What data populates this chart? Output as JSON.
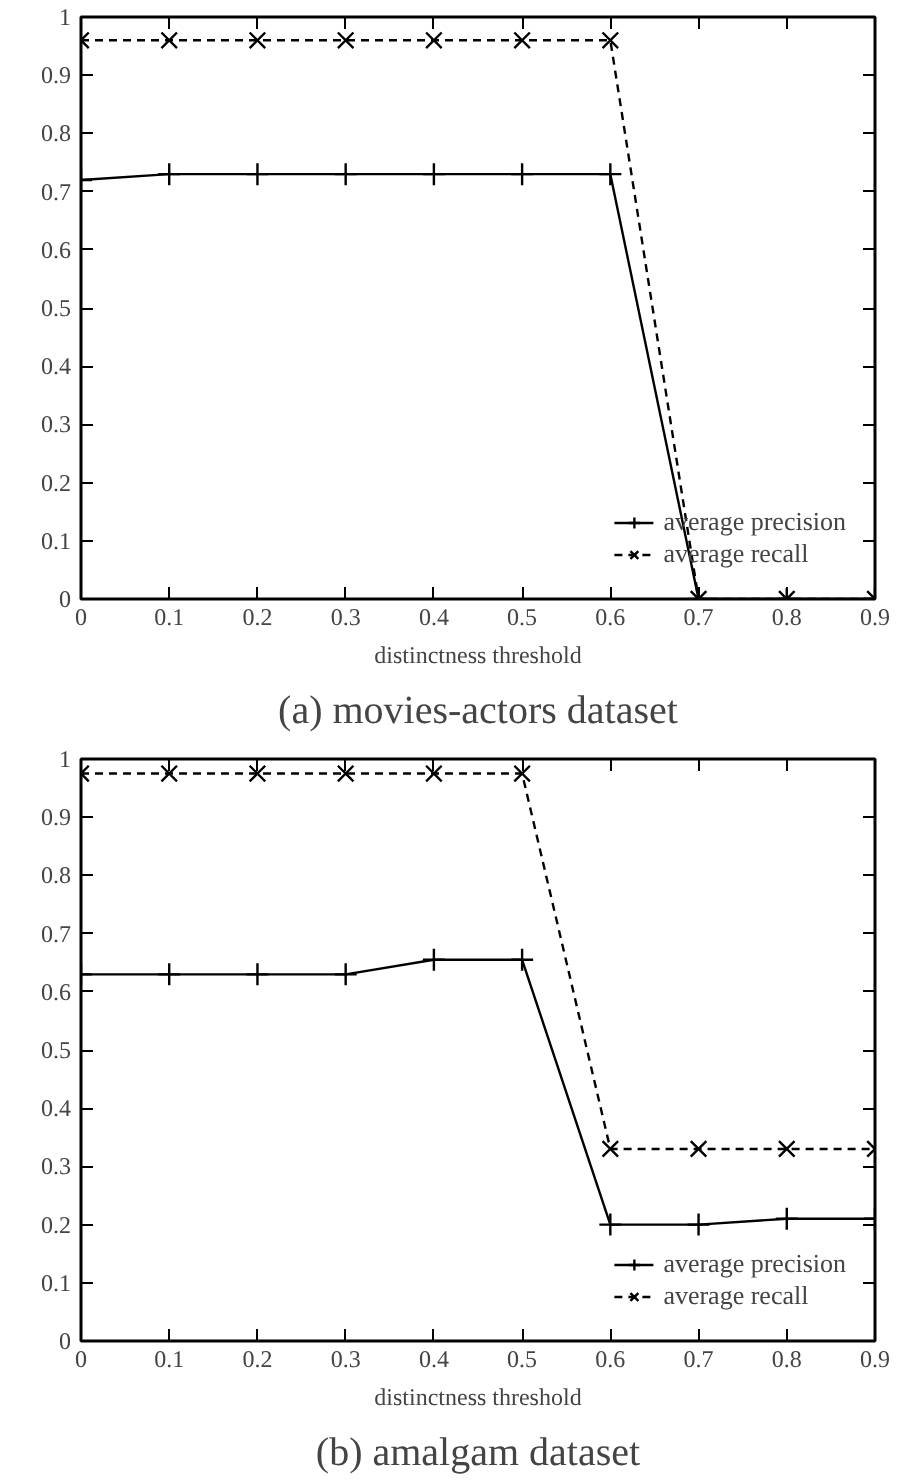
{
  "chart_data": [
    {
      "type": "line",
      "title": "(a) movies-actors dataset",
      "xlabel": "distinctness threshold",
      "x": [
        0,
        0.1,
        0.2,
        0.3,
        0.4,
        0.5,
        0.6,
        0.7,
        0.8,
        0.9
      ],
      "xlim": [
        0,
        0.9
      ],
      "ylim": [
        0,
        1
      ],
      "xticks": [
        0,
        0.1,
        0.2,
        0.3,
        0.4,
        0.5,
        0.6,
        0.7,
        0.8,
        0.9
      ],
      "yticks": [
        0,
        0.1,
        0.2,
        0.3,
        0.4,
        0.5,
        0.6,
        0.7,
        0.8,
        0.9,
        1
      ],
      "grid": false,
      "legend": "bottom right",
      "series": [
        {
          "name": "average precision",
          "color": "#000000",
          "line_style": "solid",
          "marker": "cross",
          "values": [
            0.72,
            0.73,
            0.73,
            0.73,
            0.73,
            0.73,
            0.73,
            0,
            0,
            0
          ]
        },
        {
          "name": "average recall",
          "color": "#000000",
          "line_style": "dashed",
          "marker": "x",
          "values": [
            0.96,
            0.96,
            0.96,
            0.96,
            0.96,
            0.96,
            0.96,
            0,
            0,
            0
          ]
        }
      ]
    },
    {
      "type": "line",
      "title": "(b) amalgam dataset",
      "xlabel": "distinctness threshold",
      "x": [
        0,
        0.1,
        0.2,
        0.3,
        0.4,
        0.5,
        0.6,
        0.7,
        0.8,
        0.9
      ],
      "xlim": [
        0,
        0.9
      ],
      "ylim": [
        0,
        1
      ],
      "xticks": [
        0,
        0.1,
        0.2,
        0.3,
        0.4,
        0.5,
        0.6,
        0.7,
        0.8,
        0.9
      ],
      "yticks": [
        0,
        0.1,
        0.2,
        0.3,
        0.4,
        0.5,
        0.6,
        0.7,
        0.8,
        0.9,
        1
      ],
      "grid": false,
      "legend": "bottom right",
      "series": [
        {
          "name": "average precision",
          "color": "#000000",
          "line_style": "solid",
          "marker": "cross",
          "values": [
            0.63,
            0.63,
            0.63,
            0.63,
            0.655,
            0.655,
            0.2,
            0.2,
            0.21,
            0.21
          ]
        },
        {
          "name": "average recall",
          "color": "#000000",
          "line_style": "dashed",
          "marker": "x",
          "values": [
            0.975,
            0.975,
            0.975,
            0.975,
            0.975,
            0.975,
            0.33,
            0.33,
            0.33,
            0.33
          ]
        }
      ]
    }
  ]
}
